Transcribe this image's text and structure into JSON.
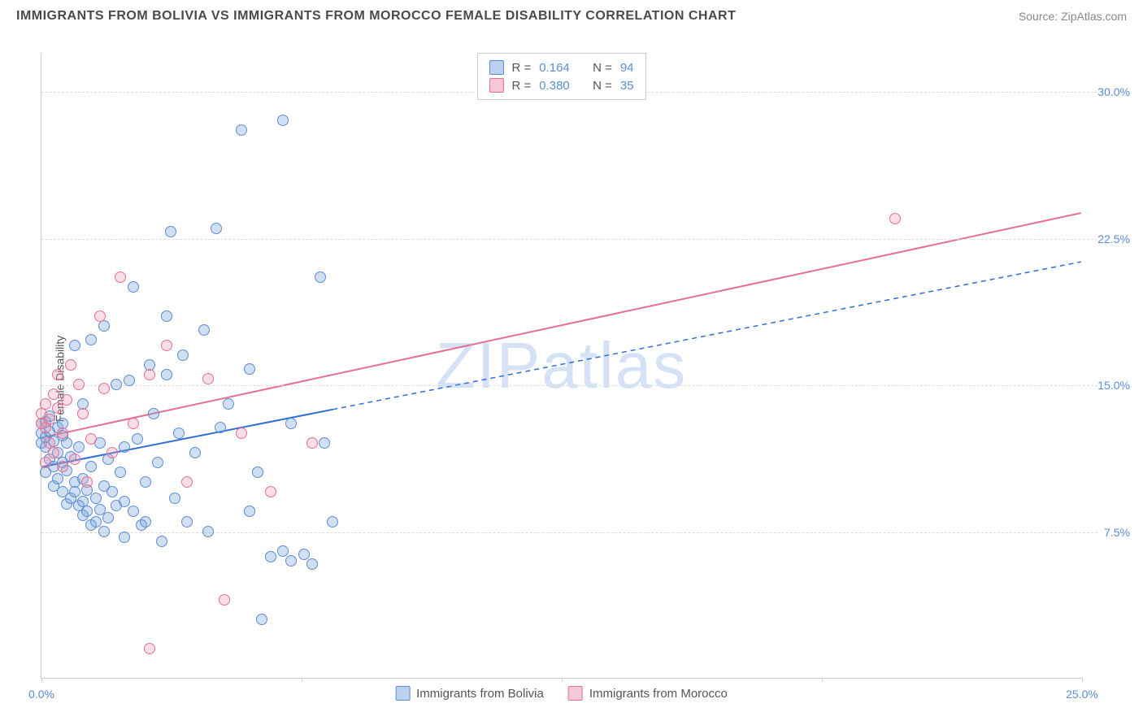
{
  "title": "IMMIGRANTS FROM BOLIVIA VS IMMIGRANTS FROM MOROCCO FEMALE DISABILITY CORRELATION CHART",
  "source": "Source: ZipAtlas.com",
  "watermark": "ZIPatlas",
  "ylabel": "Female Disability",
  "chart": {
    "type": "scatter",
    "xlim": [
      0,
      25
    ],
    "ylim": [
      0,
      32
    ],
    "background_color": "#ffffff",
    "grid_color": "#dddddd",
    "axis_color": "#cccccc",
    "tick_color": "#5b8dd6",
    "tick_fontsize": 14,
    "yticks": [
      7.5,
      15.0,
      22.5,
      30.0
    ],
    "ytick_labels": [
      "7.5%",
      "15.0%",
      "22.5%",
      "30.0%"
    ],
    "xticks": [
      0,
      6.25,
      12.5,
      18.75,
      25
    ],
    "xtick_labels_shown": {
      "0": "0.0%",
      "25": "25.0%"
    },
    "point_radius": 7,
    "series": [
      {
        "name": "Immigrants from Bolivia",
        "color_fill": "rgba(119,164,219,0.35)",
        "color_stroke": "#5b8dd6",
        "R": "0.164",
        "N": "94",
        "trend": {
          "x1": 0,
          "y1": 10.8,
          "x2": 25,
          "y2": 21.3,
          "solid_until_x": 7.0,
          "color": "#2f6fd0",
          "width": 2
        },
        "points": [
          [
            0.0,
            12.0
          ],
          [
            0.0,
            12.5
          ],
          [
            0.0,
            13.0
          ],
          [
            0.1,
            11.8
          ],
          [
            0.1,
            12.3
          ],
          [
            0.1,
            13.1
          ],
          [
            0.1,
            10.5
          ],
          [
            0.2,
            12.6
          ],
          [
            0.2,
            11.2
          ],
          [
            0.2,
            13.4
          ],
          [
            0.3,
            10.8
          ],
          [
            0.3,
            12.1
          ],
          [
            0.3,
            9.8
          ],
          [
            0.4,
            11.5
          ],
          [
            0.4,
            12.8
          ],
          [
            0.4,
            10.2
          ],
          [
            0.5,
            11.0
          ],
          [
            0.5,
            13.0
          ],
          [
            0.5,
            9.5
          ],
          [
            0.5,
            12.4
          ],
          [
            0.6,
            10.6
          ],
          [
            0.6,
            8.9
          ],
          [
            0.6,
            12.0
          ],
          [
            0.7,
            11.3
          ],
          [
            0.7,
            9.2
          ],
          [
            0.8,
            17.0
          ],
          [
            0.8,
            10.0
          ],
          [
            0.8,
            9.5
          ],
          [
            0.9,
            8.8
          ],
          [
            0.9,
            11.8
          ],
          [
            1.0,
            10.2
          ],
          [
            1.0,
            9.0
          ],
          [
            1.0,
            8.3
          ],
          [
            1.0,
            14.0
          ],
          [
            1.1,
            9.6
          ],
          [
            1.1,
            8.5
          ],
          [
            1.2,
            10.8
          ],
          [
            1.2,
            7.8
          ],
          [
            1.2,
            17.3
          ],
          [
            1.3,
            9.2
          ],
          [
            1.3,
            8.0
          ],
          [
            1.4,
            12.0
          ],
          [
            1.4,
            8.6
          ],
          [
            1.5,
            18.0
          ],
          [
            1.5,
            9.8
          ],
          [
            1.5,
            7.5
          ],
          [
            1.6,
            11.2
          ],
          [
            1.6,
            8.2
          ],
          [
            1.7,
            9.5
          ],
          [
            1.8,
            15.0
          ],
          [
            1.8,
            8.8
          ],
          [
            1.9,
            10.5
          ],
          [
            2.0,
            9.0
          ],
          [
            2.0,
            11.8
          ],
          [
            2.0,
            7.2
          ],
          [
            2.1,
            15.2
          ],
          [
            2.2,
            8.5
          ],
          [
            2.2,
            20.0
          ],
          [
            2.3,
            12.2
          ],
          [
            2.4,
            7.8
          ],
          [
            2.5,
            10.0
          ],
          [
            2.5,
            8.0
          ],
          [
            2.6,
            16.0
          ],
          [
            2.7,
            13.5
          ],
          [
            2.8,
            11.0
          ],
          [
            2.9,
            7.0
          ],
          [
            3.0,
            15.5
          ],
          [
            3.0,
            18.5
          ],
          [
            3.1,
            22.8
          ],
          [
            3.2,
            9.2
          ],
          [
            3.3,
            12.5
          ],
          [
            3.4,
            16.5
          ],
          [
            3.5,
            8.0
          ],
          [
            3.7,
            11.5
          ],
          [
            3.9,
            17.8
          ],
          [
            4.0,
            7.5
          ],
          [
            4.2,
            23.0
          ],
          [
            4.3,
            12.8
          ],
          [
            4.5,
            14.0
          ],
          [
            4.8,
            28.0
          ],
          [
            5.0,
            8.5
          ],
          [
            5.0,
            15.8
          ],
          [
            5.2,
            10.5
          ],
          [
            5.3,
            3.0
          ],
          [
            5.5,
            6.2
          ],
          [
            5.8,
            28.5
          ],
          [
            5.8,
            6.5
          ],
          [
            6.0,
            13.0
          ],
          [
            6.0,
            6.0
          ],
          [
            6.3,
            6.3
          ],
          [
            6.5,
            5.8
          ],
          [
            6.7,
            20.5
          ],
          [
            6.8,
            12.0
          ],
          [
            7.0,
            8.0
          ]
        ]
      },
      {
        "name": "Immigrants from Morocco",
        "color_fill": "rgba(235,145,172,0.30)",
        "color_stroke": "#e56f94",
        "R": "0.380",
        "N": "35",
        "trend": {
          "x1": 0,
          "y1": 12.3,
          "x2": 25,
          "y2": 23.8,
          "solid_until_x": 25,
          "color": "#e56f94",
          "width": 2
        },
        "points": [
          [
            0.0,
            13.0
          ],
          [
            0.0,
            13.5
          ],
          [
            0.1,
            12.8
          ],
          [
            0.1,
            14.0
          ],
          [
            0.1,
            11.0
          ],
          [
            0.2,
            13.2
          ],
          [
            0.2,
            12.0
          ],
          [
            0.3,
            14.5
          ],
          [
            0.3,
            11.5
          ],
          [
            0.4,
            13.8
          ],
          [
            0.4,
            15.5
          ],
          [
            0.5,
            12.5
          ],
          [
            0.5,
            10.8
          ],
          [
            0.6,
            14.2
          ],
          [
            0.7,
            16.0
          ],
          [
            0.8,
            11.2
          ],
          [
            0.9,
            15.0
          ],
          [
            1.0,
            13.5
          ],
          [
            1.1,
            10.0
          ],
          [
            1.2,
            12.2
          ],
          [
            1.4,
            18.5
          ],
          [
            1.5,
            14.8
          ],
          [
            1.7,
            11.5
          ],
          [
            1.9,
            20.5
          ],
          [
            2.2,
            13.0
          ],
          [
            2.6,
            15.5
          ],
          [
            2.6,
            1.5
          ],
          [
            3.0,
            17.0
          ],
          [
            3.5,
            10.0
          ],
          [
            4.0,
            15.3
          ],
          [
            4.4,
            4.0
          ],
          [
            4.8,
            12.5
          ],
          [
            5.5,
            9.5
          ],
          [
            6.5,
            12.0
          ],
          [
            20.5,
            23.5
          ]
        ]
      }
    ]
  },
  "legend_top": {
    "label_R": "R =",
    "label_N": "N ="
  },
  "legend_bottom": {
    "items": [
      "Immigrants from Bolivia",
      "Immigrants from Morocco"
    ]
  }
}
